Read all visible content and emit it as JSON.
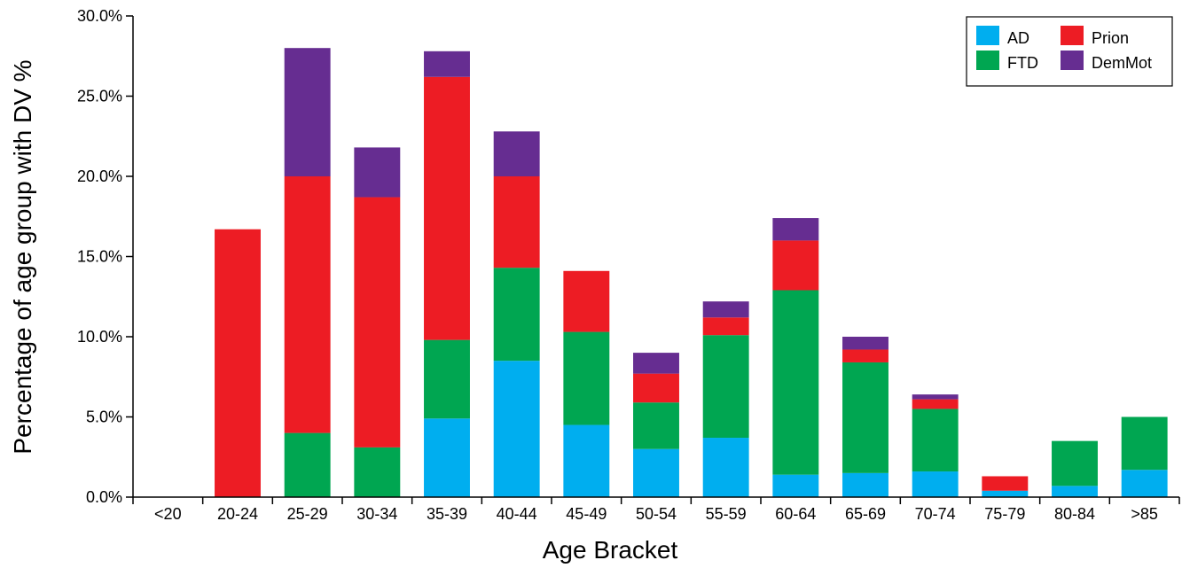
{
  "chart_data": {
    "type": "bar",
    "stacked": true,
    "xlabel": "Age Bracket",
    "ylabel": "Percentage of age group with DV %",
    "ylim": [
      0,
      30
    ],
    "yticks": [
      "0.0%",
      "5.0%",
      "10.0%",
      "15.0%",
      "20.0%",
      "25.0%",
      "30.0%"
    ],
    "categories": [
      "<20",
      "20-24",
      "25-29",
      "30-34",
      "35-39",
      "40-44",
      "45-49",
      "50-54",
      "55-59",
      "60-64",
      "65-69",
      "70-74",
      "75-79",
      "80-84",
      ">85"
    ],
    "series": [
      {
        "name": "AD",
        "color": "#00AEEF",
        "values": [
          0,
          0,
          0,
          0,
          4.9,
          8.5,
          4.5,
          3.0,
          3.7,
          1.4,
          1.5,
          1.6,
          0.4,
          0.7,
          1.7
        ]
      },
      {
        "name": "FTD",
        "color": "#00A651",
        "values": [
          0,
          0,
          4.0,
          3.1,
          4.9,
          5.8,
          5.8,
          2.9,
          6.4,
          11.5,
          6.9,
          3.9,
          0,
          2.8,
          3.3
        ]
      },
      {
        "name": "Prion",
        "color": "#ED1C24",
        "values": [
          0,
          16.7,
          16.0,
          15.6,
          16.4,
          5.7,
          3.8,
          1.8,
          1.1,
          3.1,
          0.8,
          0.6,
          0.9,
          0,
          0
        ]
      },
      {
        "name": "DemMot",
        "color": "#662D91",
        "values": [
          0,
          0,
          8.0,
          3.1,
          1.6,
          2.8,
          0,
          1.3,
          1.0,
          1.4,
          0.8,
          0.3,
          0,
          0,
          0
        ]
      }
    ],
    "legend": {
      "position": "top-right",
      "layout": [
        [
          "AD",
          "Prion"
        ],
        [
          "FTD",
          "DemMot"
        ]
      ]
    },
    "grid": false
  }
}
